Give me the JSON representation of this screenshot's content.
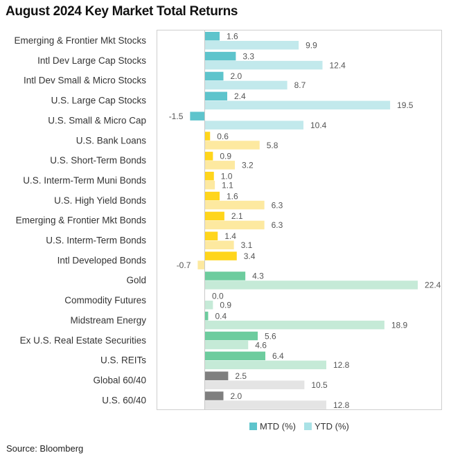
{
  "chart_data": {
    "type": "bar",
    "orientation": "horizontal",
    "title": "August 2024 Key Market Total Returns",
    "source": "Source: Bloomberg",
    "categories": [
      "Emerging & Frontier Mkt Stocks",
      "Intl Dev Large Cap Stocks",
      "Intl Dev Small & Micro Stocks",
      "U.S. Large Cap Stocks",
      "U.S. Small & Micro Cap",
      "U.S. Bank Loans",
      "U.S. Short-Term Bonds",
      "U.S. Interm-Term Muni Bonds",
      "U.S. High Yield Bonds",
      "Emerging & Frontier Mkt Bonds",
      "U.S. Interm-Term Bonds",
      "Intl Developed Bonds",
      "Gold",
      "Commodity Futures",
      "Midstream Energy",
      "Ex U.S. Real Estate Securities",
      "U.S. REITs",
      "Global 60/40",
      "U.S. 60/40"
    ],
    "series": [
      {
        "name": "MTD (%)",
        "values": [
          1.6,
          3.3,
          2.0,
          2.4,
          -1.5,
          0.6,
          0.9,
          1.0,
          1.6,
          2.1,
          1.4,
          3.4,
          4.3,
          0.0,
          0.4,
          5.6,
          6.4,
          2.5,
          2.0
        ]
      },
      {
        "name": "YTD (%)",
        "values": [
          9.9,
          12.4,
          8.7,
          19.5,
          10.4,
          5.8,
          3.2,
          1.1,
          6.3,
          6.3,
          3.1,
          -0.7,
          22.4,
          0.9,
          18.9,
          4.6,
          12.8,
          10.5,
          12.8
        ]
      }
    ],
    "groups": [
      "equity",
      "equity",
      "equity",
      "equity",
      "equity",
      "bond",
      "bond",
      "bond",
      "bond",
      "bond",
      "bond",
      "bond",
      "real",
      "real",
      "real",
      "real",
      "real",
      "balanced",
      "balanced"
    ],
    "colors": {
      "equity": {
        "mtd": "#5ec4cc",
        "ytd": "#c2e9ec"
      },
      "bond": {
        "mtd": "#ffd51c",
        "ytd": "#fde9a0"
      },
      "real": {
        "mtd": "#6dcc9e",
        "ytd": "#c5ead7"
      },
      "balanced": {
        "mtd": "#7f7f7f",
        "ytd": "#e4e4e4"
      }
    },
    "xlim": [
      -5,
      25
    ],
    "grid": false,
    "legend": "bottom"
  }
}
